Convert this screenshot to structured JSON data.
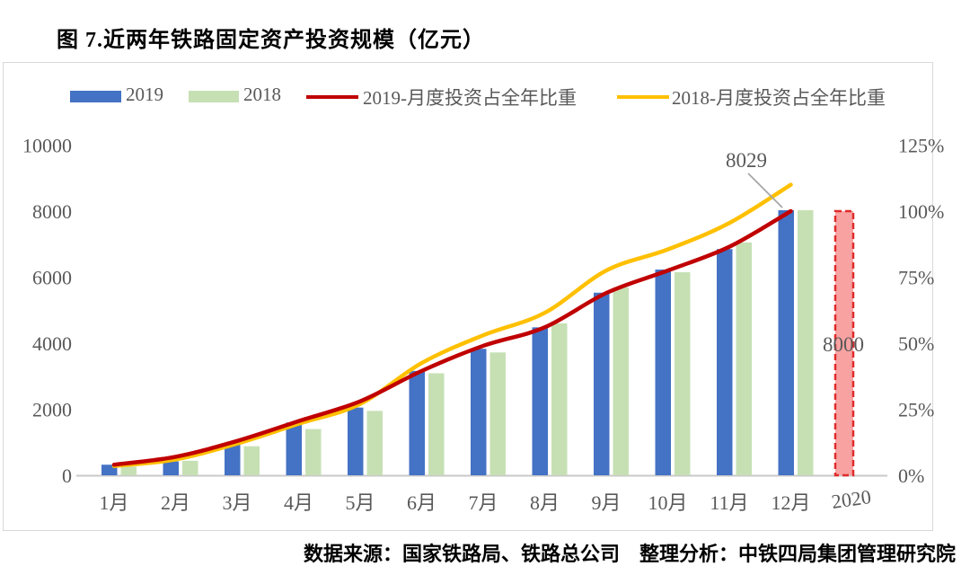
{
  "title": "图 7.近两年铁路固定资产投资规模（亿元）",
  "footer": "数据来源：国家铁路局、铁路总公司　整理分析：中铁四局集团管理研究院",
  "colors": {
    "bar_2019": "#4472c4",
    "bar_2018": "#c6e0b4",
    "line_2019": "#c00000",
    "line_2018": "#ffc000",
    "forecast_fill": "#f9a2a2",
    "forecast_border": "#e02b2b",
    "axis_text": "#595959",
    "axis_line": "#c9c9c9",
    "callout_line": "#a6a6a6",
    "frame_border": "#d9d9d9"
  },
  "legend": {
    "items": [
      {
        "label": "2019",
        "type": "bar",
        "color": "#4472c4"
      },
      {
        "label": "2018",
        "type": "bar",
        "color": "#c6e0b4"
      },
      {
        "label": "2019-月度投资占全年比重",
        "type": "line",
        "color": "#c00000"
      },
      {
        "label": "2018-月度投资占全年比重",
        "type": "line",
        "color": "#ffc000"
      }
    ]
  },
  "chart_data": {
    "type": "bar",
    "subtype": "combo-bar-line-dual-axis",
    "categories": [
      "1月",
      "2月",
      "3月",
      "4月",
      "5月",
      "6月",
      "7月",
      "8月",
      "9月",
      "10月",
      "11月",
      "12月"
    ],
    "extra_category": "2020",
    "series": [
      {
        "name": "2019",
        "type": "bar",
        "axis": "left",
        "values": [
          320,
          420,
          970,
          1600,
          2050,
          3160,
          3830,
          4480,
          5530,
          6230,
          6850,
          8029
        ]
      },
      {
        "name": "2018",
        "type": "bar",
        "axis": "left",
        "values": [
          260,
          440,
          880,
          1400,
          1950,
          3090,
          3720,
          4600,
          5690,
          6150,
          7050,
          8030
        ]
      },
      {
        "name": "2019-月度投资占全年比重",
        "type": "line",
        "axis": "right",
        "unit": "%",
        "values": [
          4,
          7,
          13,
          20.5,
          28,
          39.5,
          49,
          56,
          69,
          77.5,
          86.5,
          100
        ]
      },
      {
        "name": "2018-月度投资占全年比重",
        "type": "line",
        "axis": "right",
        "unit": "%",
        "values": [
          3.5,
          6,
          12,
          19.5,
          27,
          42.5,
          53,
          61.5,
          77.5,
          85.5,
          95.5,
          110
        ]
      }
    ],
    "forecast_bar": {
      "category": "2020",
      "value": 8000,
      "label": "8000",
      "style": "red-dashed"
    },
    "annotations": [
      {
        "text": "8029",
        "refers_to": "2019 bar, 12月",
        "has_callout_line": true
      },
      {
        "text": "8000",
        "refers_to": "2020 forecast bar",
        "has_callout_line": false
      }
    ],
    "left_axis": {
      "ticks": [
        0,
        2000,
        4000,
        6000,
        8000,
        10000
      ],
      "min": 0,
      "max": 10000
    },
    "right_axis": {
      "tick_labels": [
        "0%",
        "25%",
        "50%",
        "75%",
        "100%",
        "125%"
      ],
      "ticks_pct": [
        0,
        25,
        50,
        75,
        100,
        125
      ],
      "min": 0,
      "max": 125
    },
    "grid": "off",
    "legend_position": "top"
  }
}
